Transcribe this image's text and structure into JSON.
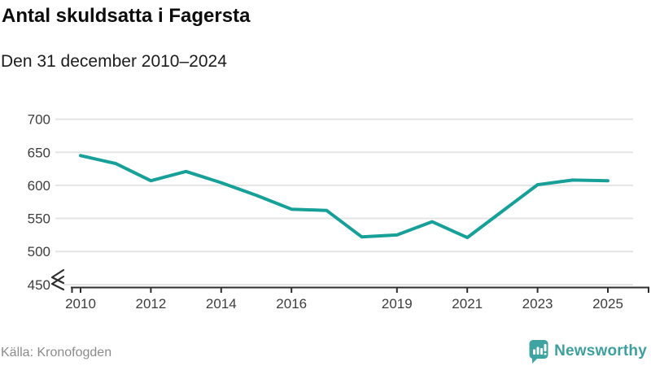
{
  "header": {
    "title": "Antal skuldsatta i Fagersta",
    "subtitle": "Den 31 december 2010–2024"
  },
  "footer": {
    "source": "Källa: Kronofogden",
    "brand": "Newsworthy"
  },
  "colors": {
    "line": "#16a098",
    "brand": "#3fa3a1",
    "grid": "#e4e4e4",
    "axis": "#2e2e2e",
    "tick_text": "#3d3d3d",
    "muted": "#8b8b8b"
  },
  "chart_data": {
    "type": "line",
    "title": "Antal skuldsatta i Fagersta",
    "subtitle": "Den 31 december 2010–2024",
    "series": [
      {
        "name": "Antal skuldsatta",
        "x": [
          2010,
          2011,
          2012,
          2013,
          2014,
          2015,
          2016,
          2017,
          2018,
          2019,
          2020,
          2021,
          2022,
          2023,
          2024,
          2025
        ],
        "values": [
          645,
          633,
          607,
          621,
          604,
          585,
          564,
          562,
          522,
          525,
          545,
          521,
          561,
          601,
          608,
          607
        ]
      }
    ],
    "xlabel": "",
    "ylabel": "",
    "ylim": [
      450,
      700
    ],
    "y_ticks": [
      450,
      500,
      550,
      600,
      650,
      700
    ],
    "x_tick_years": [
      2010,
      2012,
      2014,
      2016,
      2019,
      2021,
      2023,
      2025
    ],
    "x_tick_labels": [
      "2010",
      "2012",
      "2014",
      "2016",
      "2019",
      "2021",
      "2023",
      "2025"
    ],
    "grid": true,
    "legend": "none",
    "y_axis_break": true
  }
}
